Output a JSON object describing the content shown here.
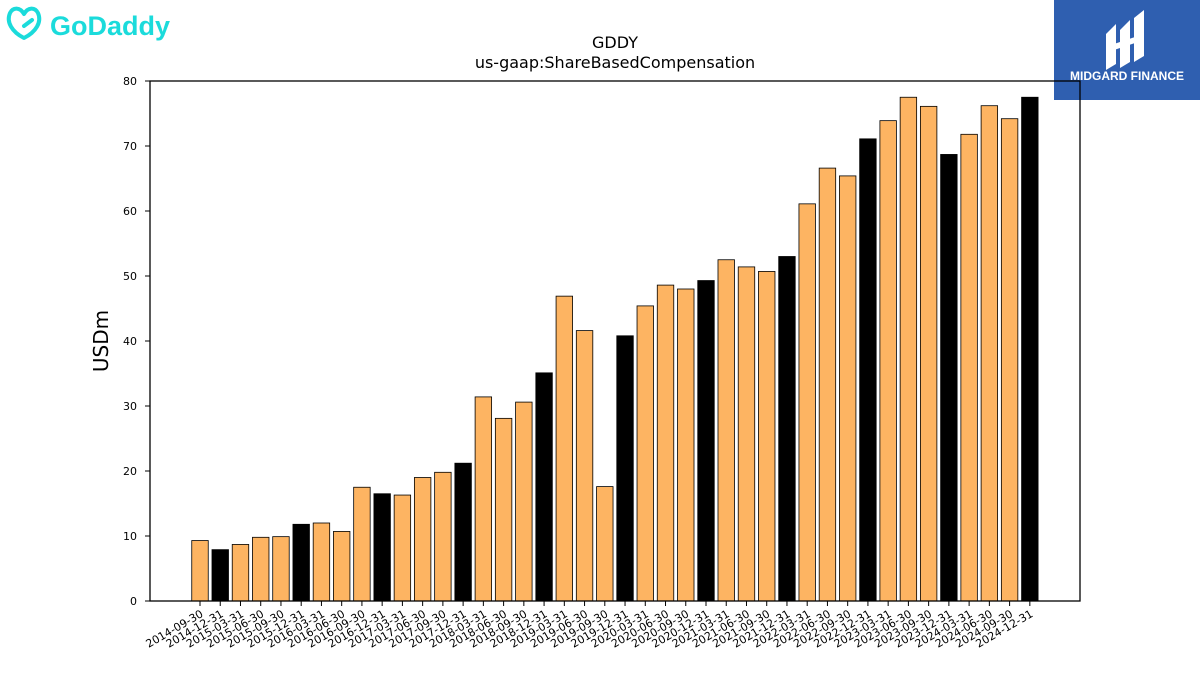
{
  "logos": {
    "left_text": "GoDaddy",
    "right_text": "MIDGARD FINANCE"
  },
  "colors": {
    "bar_default": "#fdb462",
    "bar_highlight": "#000000",
    "godaddy": "#1bdbdb",
    "midgard_bg": "#2f5fb0"
  },
  "chart_data": {
    "type": "bar",
    "title": "GDDY",
    "subtitle": "us-gaap:ShareBasedCompensation",
    "xlabel": "",
    "ylabel": "USDm",
    "ylim": [
      0,
      80
    ],
    "yticks": [
      0,
      10,
      20,
      30,
      40,
      50,
      60,
      70,
      80
    ],
    "grid": false,
    "categories": [
      "2014-09-30",
      "2014-12-31",
      "2015-03-31",
      "2015-06-30",
      "2015-09-30",
      "2015-12-31",
      "2016-03-31",
      "2016-06-30",
      "2016-09-30",
      "2016-12-31",
      "2017-03-31",
      "2017-06-30",
      "2017-09-30",
      "2017-12-31",
      "2018-03-31",
      "2018-06-30",
      "2018-09-30",
      "2018-12-31",
      "2019-03-31",
      "2019-06-30",
      "2019-09-30",
      "2019-12-31",
      "2020-03-31",
      "2020-06-30",
      "2020-09-30",
      "2020-12-31",
      "2021-03-31",
      "2021-06-30",
      "2021-09-30",
      "2021-12-31",
      "2022-03-31",
      "2022-06-30",
      "2022-09-30",
      "2022-12-31",
      "2023-03-31",
      "2023-06-30",
      "2023-09-30",
      "2023-12-31",
      "2024-03-31",
      "2024-06-30",
      "2024-09-30",
      "2024-12-31"
    ],
    "values": [
      9.3,
      7.9,
      8.7,
      9.8,
      9.9,
      11.8,
      12.0,
      10.7,
      17.5,
      16.5,
      16.3,
      19.0,
      19.8,
      21.2,
      31.4,
      28.1,
      30.6,
      35.1,
      46.9,
      41.6,
      17.6,
      40.8,
      45.4,
      48.6,
      48.0,
      49.3,
      52.5,
      51.4,
      50.7,
      53.0,
      61.1,
      66.6,
      65.4,
      71.1,
      73.9,
      77.5,
      76.1,
      68.7,
      71.8,
      76.2,
      74.2,
      77.5
    ],
    "highlighted": [
      "2014-12-31",
      "2015-12-31",
      "2016-12-31",
      "2017-12-31",
      "2018-12-31",
      "2019-12-31",
      "2020-12-31",
      "2021-12-31",
      "2022-12-31",
      "2023-12-31",
      "2024-12-31"
    ]
  }
}
